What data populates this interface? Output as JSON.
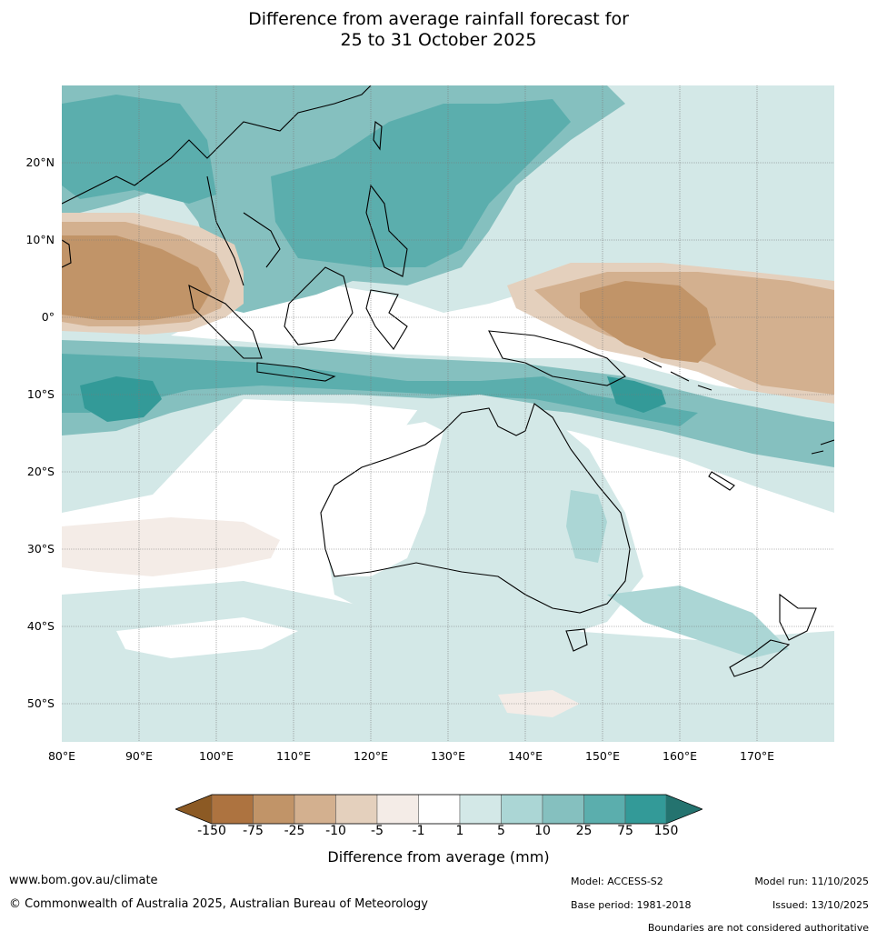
{
  "title_line1": "Difference from average rainfall forecast for",
  "title_line2": "25 to 31 October 2025",
  "latitudes": [
    "20°N",
    "10°N",
    "0°",
    "10°S",
    "20°S",
    "30°S",
    "40°S",
    "50°S"
  ],
  "longitudes": [
    "80°E",
    "90°E",
    "100°E",
    "110°E",
    "120°E",
    "130°E",
    "140°E",
    "150°E",
    "160°E",
    "170°E"
  ],
  "colorbar": {
    "title": "Difference from average (mm)",
    "ticks": [
      "-150",
      "-75",
      "-25",
      "-10",
      "-5",
      "-1",
      "1",
      "5",
      "10",
      "25",
      "75",
      "150"
    ],
    "colors": {
      "below_min": "#8c5a24",
      "c1": "#ad7340",
      "c2": "#c19468",
      "c3": "#d3b08f",
      "c4": "#e4d0bd",
      "c5": "#f4ece7",
      "c6": "#ffffff",
      "c7": "#d3e8e7",
      "c8": "#abd6d5",
      "c9": "#85c0bf",
      "c10": "#5baead",
      "c11": "#339a98",
      "above_max": "#24736f"
    }
  },
  "footer": {
    "website": "www.bom.gov.au/climate",
    "copyright": "© Commonwealth of Australia 2025, Australian Bureau of Meteorology",
    "model": "Model: ACCESS-S2",
    "base_period": "Base period: 1981-2018",
    "model_run": "Model run: 11/10/2025",
    "issued": "Issued: 13/10/2025",
    "disclaimer": "Boundaries are not considered authoritative"
  }
}
